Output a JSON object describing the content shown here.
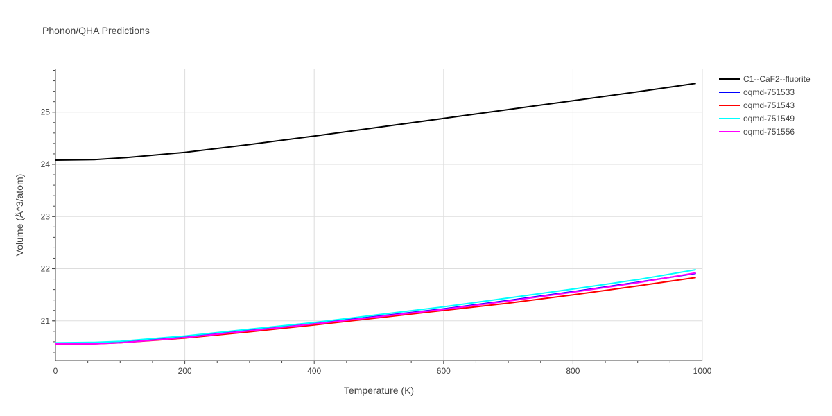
{
  "chart_data": {
    "type": "line",
    "title": "Phonon/QHA Predictions",
    "xlabel": "Temperature (K)",
    "ylabel": "Volume (Å^3/atom)",
    "xlim": [
      0,
      1000
    ],
    "ylim": [
      20.24,
      25.82
    ],
    "x_ticks": [
      0,
      200,
      400,
      600,
      800,
      1000
    ],
    "y_ticks": [
      21,
      22,
      23,
      24,
      25
    ],
    "x_tick_labels": [
      "0",
      "200",
      "400",
      "600",
      "800",
      "1000"
    ],
    "y_tick_labels": [
      "21",
      "22",
      "23",
      "24",
      "25"
    ],
    "grid": true,
    "legend_position": "right",
    "series": [
      {
        "name": "C1--CaF2--fluorite",
        "color": "#000000",
        "x": [
          0,
          60,
          110,
          200,
          300,
          400,
          500,
          600,
          700,
          800,
          900,
          990
        ],
        "values": [
          24.08,
          24.09,
          24.13,
          24.23,
          24.38,
          24.54,
          24.71,
          24.88,
          25.05,
          25.22,
          25.39,
          25.55
        ]
      },
      {
        "name": "oqmd-751533",
        "color": "#0000ff",
        "x": [
          0,
          60,
          100,
          200,
          300,
          400,
          500,
          600,
          700,
          800,
          900,
          990
        ],
        "values": [
          20.56,
          20.57,
          20.59,
          20.69,
          20.82,
          20.95,
          21.09,
          21.23,
          21.39,
          21.56,
          21.74,
          21.91
        ]
      },
      {
        "name": "oqmd-751543",
        "color": "#ff0000",
        "x": [
          0,
          60,
          100,
          200,
          300,
          400,
          500,
          600,
          700,
          800,
          900,
          990
        ],
        "values": [
          20.55,
          20.56,
          20.58,
          20.67,
          20.79,
          20.92,
          21.06,
          21.2,
          21.34,
          21.5,
          21.67,
          21.83
        ]
      },
      {
        "name": "oqmd-751549",
        "color": "#00ffff",
        "x": [
          0,
          60,
          100,
          200,
          300,
          400,
          500,
          600,
          700,
          800,
          900,
          990
        ],
        "values": [
          20.58,
          20.59,
          20.61,
          20.71,
          20.84,
          20.97,
          21.12,
          21.27,
          21.44,
          21.61,
          21.79,
          21.98
        ]
      },
      {
        "name": "oqmd-751556",
        "color": "#ff00ff",
        "x": [
          0,
          60,
          100,
          200,
          300,
          400,
          500,
          600,
          700,
          800,
          900,
          990
        ],
        "values": [
          20.56,
          20.56,
          20.58,
          20.68,
          20.81,
          20.94,
          21.08,
          21.22,
          21.38,
          21.55,
          21.73,
          21.92
        ]
      }
    ]
  }
}
